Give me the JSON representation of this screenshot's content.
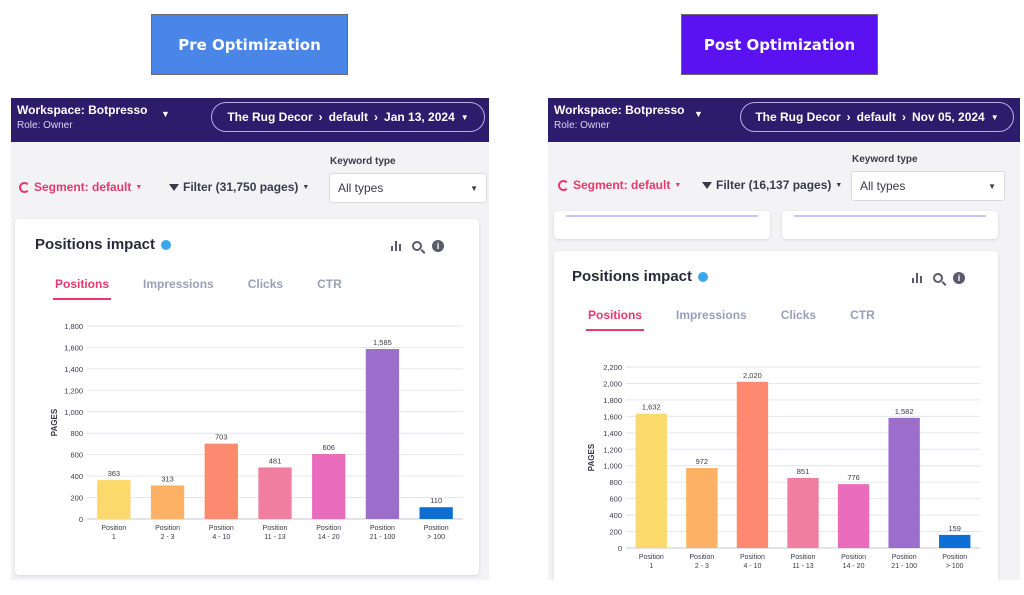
{
  "colors": {
    "pre_banner": "#4a86e8",
    "post_banner": "#5a12f0",
    "topbar": "#2d1b6b",
    "accent": "#e8396c",
    "bar_colors": [
      "#fcd96b",
      "#fdb165",
      "#fd8a70",
      "#f07ea0",
      "#e86bbc",
      "#9b6dcd",
      "#0d6fd6"
    ]
  },
  "pre": {
    "banner": "Pre Optimization",
    "workspace": "Workspace: Botpresso",
    "role": "Role: Owner",
    "breadcrumb": {
      "site": "The Rug Decor",
      "branch": "default",
      "date": "Jan 13, 2024"
    },
    "segment_label": "Segment: default",
    "filter_label": "Filter (31,750 pages)",
    "keyword_type_label": "Keyword type",
    "keyword_type_value": "All types",
    "card_title": "Positions impact",
    "tabs": [
      "Positions",
      "Impressions",
      "Clicks",
      "CTR"
    ],
    "active_tab": "Positions",
    "chart_data": {
      "type": "bar",
      "ylabel": "PAGES",
      "ylim": [
        0,
        1800
      ],
      "yticks": [
        0,
        200,
        400,
        600,
        800,
        1000,
        1200,
        1400,
        1600,
        1800
      ],
      "ytick_labels": [
        "0",
        "200",
        "400",
        "600",
        "800",
        "1,000",
        "1,200",
        "1,400",
        "1,600",
        "1,800"
      ],
      "categories": [
        [
          "Position",
          "1"
        ],
        [
          "Position",
          "2 - 3"
        ],
        [
          "Position",
          "4 - 10"
        ],
        [
          "Position",
          "11 - 13"
        ],
        [
          "Position",
          "14 - 20"
        ],
        [
          "Position",
          "21 - 100"
        ],
        [
          "Position",
          "> 100"
        ]
      ],
      "values": [
        363,
        313,
        703,
        481,
        606,
        1585,
        110
      ],
      "value_labels": [
        "363",
        "313",
        "703",
        "481",
        "606",
        "1,585",
        "110"
      ],
      "grid": true
    }
  },
  "post": {
    "banner": "Post Optimization",
    "workspace": "Workspace: Botpresso",
    "role": "Role: Owner",
    "breadcrumb": {
      "site": "The Rug Decor",
      "branch": "default",
      "date": "Nov 05, 2024"
    },
    "segment_label": "Segment: default",
    "filter_label": "Filter (16,137 pages)",
    "keyword_type_label": "Keyword type",
    "keyword_type_value": "All types",
    "card_title": "Positions impact",
    "tabs": [
      "Positions",
      "Impressions",
      "Clicks",
      "CTR"
    ],
    "active_tab": "Positions",
    "chart_data": {
      "type": "bar",
      "ylabel": "PAGES",
      "ylim": [
        0,
        2200
      ],
      "yticks": [
        0,
        200,
        400,
        600,
        800,
        1000,
        1200,
        1400,
        1600,
        1800,
        2000,
        2200
      ],
      "ytick_labels": [
        "0",
        "200",
        "400",
        "600",
        "800",
        "1,000",
        "1,200",
        "1,400",
        "1,600",
        "1,800",
        "2,000",
        "2,200"
      ],
      "categories": [
        [
          "Position",
          "1"
        ],
        [
          "Position",
          "2 - 3"
        ],
        [
          "Position",
          "4 - 10"
        ],
        [
          "Position",
          "11 - 13"
        ],
        [
          "Position",
          "14 - 20"
        ],
        [
          "Position",
          "21 - 100"
        ],
        [
          "Position",
          "> 100"
        ]
      ],
      "values": [
        1632,
        972,
        2020,
        851,
        776,
        1582,
        159
      ],
      "value_labels": [
        "1,632",
        "972",
        "2,020",
        "851",
        "776",
        "1,582",
        "159"
      ],
      "grid": true
    }
  }
}
